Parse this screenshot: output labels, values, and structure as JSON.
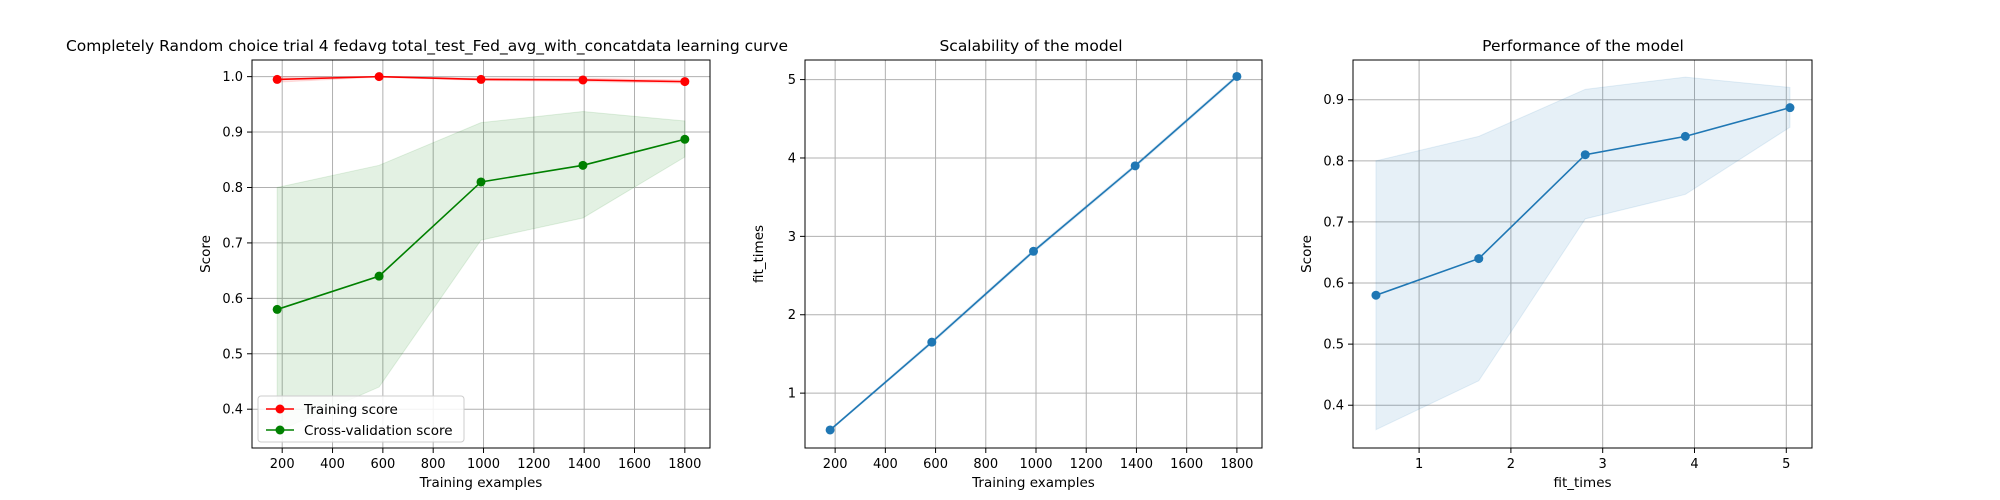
{
  "chart_data": [
    {
      "type": "line",
      "title": "Completely Random choice trial 4 fedavg total_test_Fed_avg_with_concatdata learning curve",
      "xlabel": "Training examples",
      "ylabel": "Score",
      "xlim": [
        80,
        1900
      ],
      "ylim": [
        0.33,
        1.03
      ],
      "xticks": [
        200,
        400,
        600,
        800,
        1000,
        1200,
        1400,
        1600,
        1800
      ],
      "yticks": [
        0.4,
        0.5,
        0.6,
        0.7,
        0.8,
        0.9,
        1.0
      ],
      "grid": true,
      "legend": "lower-left",
      "x": [
        180,
        585,
        990,
        1395,
        1800
      ],
      "series": [
        {
          "name": "Training score",
          "color": "#ff0000",
          "values": [
            0.995,
            1.0,
            0.995,
            0.994,
            0.991
          ],
          "band_lower": [
            0.99,
            0.999,
            0.993,
            0.991,
            0.988
          ],
          "band_upper": [
            1.0,
            1.0,
            0.997,
            0.997,
            0.994
          ]
        },
        {
          "name": "Cross-validation score",
          "color": "#008000",
          "band_color": "#008000",
          "values": [
            0.58,
            0.64,
            0.81,
            0.84,
            0.887
          ],
          "band_lower": [
            0.36,
            0.44,
            0.705,
            0.745,
            0.855
          ],
          "band_upper": [
            0.8,
            0.84,
            0.917,
            0.937,
            0.92
          ]
        }
      ]
    },
    {
      "type": "line",
      "title": "Scalability of the model",
      "xlabel": "Training examples",
      "ylabel": "fit_times",
      "xlim": [
        80,
        1900
      ],
      "ylim": [
        0.3,
        5.25
      ],
      "xticks": [
        200,
        400,
        600,
        800,
        1000,
        1200,
        1400,
        1600,
        1800
      ],
      "yticks": [
        1,
        2,
        3,
        4,
        5
      ],
      "grid": true,
      "x": [
        180,
        585,
        990,
        1395,
        1800
      ],
      "series": [
        {
          "color": "#1f77b4",
          "values": [
            0.53,
            1.65,
            2.81,
            3.9,
            5.04
          ],
          "band_lower": [
            0.52,
            1.63,
            2.79,
            3.88,
            5.02
          ],
          "band_upper": [
            0.54,
            1.67,
            2.83,
            3.92,
            5.06
          ]
        }
      ]
    },
    {
      "type": "line",
      "title": "Performance of the model",
      "xlabel": "fit_times",
      "ylabel": "Score",
      "xlim": [
        0.28,
        5.28
      ],
      "ylim": [
        0.33,
        0.965
      ],
      "xticks": [
        1,
        2,
        3,
        4,
        5
      ],
      "yticks": [
        0.4,
        0.5,
        0.6,
        0.7,
        0.8,
        0.9
      ],
      "grid": true,
      "x": [
        0.53,
        1.65,
        2.81,
        3.9,
        5.04
      ],
      "series": [
        {
          "color": "#1f77b4",
          "values": [
            0.58,
            0.64,
            0.81,
            0.84,
            0.887
          ],
          "band_lower": [
            0.36,
            0.44,
            0.705,
            0.745,
            0.855
          ],
          "band_upper": [
            0.8,
            0.84,
            0.917,
            0.937,
            0.92
          ]
        }
      ]
    }
  ]
}
